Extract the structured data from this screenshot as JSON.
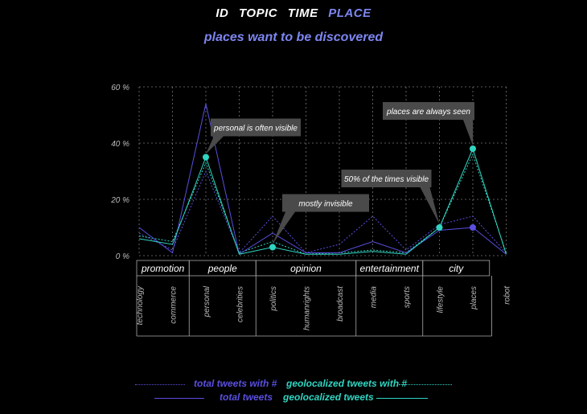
{
  "nav": {
    "items": [
      "ID",
      "TOPIC",
      "TIME",
      "PLACE"
    ],
    "active": "PLACE"
  },
  "subtitle": "places want to be discovered",
  "colors": {
    "purple": "#5a4fe0",
    "teal": "#2fd5c1",
    "grid": "#777777",
    "annotation_bg": "#4a4a4a"
  },
  "chart_data": {
    "type": "line",
    "categories": [
      "technology",
      "commerce",
      "personal",
      "celebrities",
      "politics",
      "humanrights",
      "broadcast",
      "media",
      "sports",
      "lifestyle",
      "places",
      "robot"
    ],
    "groups": [
      {
        "label": "promotion",
        "members": [
          "technology",
          "commerce"
        ]
      },
      {
        "label": "people",
        "members": [
          "personal",
          "celebrities"
        ]
      },
      {
        "label": "opinion",
        "members": [
          "politics",
          "humanrights",
          "broadcast"
        ]
      },
      {
        "label": "entertainment",
        "members": [
          "media",
          "sports"
        ]
      },
      {
        "label": "city",
        "members": [
          "lifestyle",
          "places"
        ]
      }
    ],
    "ylim": [
      0,
      60
    ],
    "yticks": [
      0,
      20,
      40,
      60
    ],
    "ytick_labels": [
      "0 %",
      "20 %",
      "40 %",
      "60 %"
    ],
    "series": [
      {
        "name": "total tweets with #",
        "color": "#5a4fe0",
        "style": "dotted",
        "values": [
          8,
          2,
          30,
          1,
          14,
          1,
          4,
          14,
          2,
          11,
          14,
          1
        ]
      },
      {
        "name": "geolocalized tweets with #",
        "color": "#2fd5c1",
        "style": "dotted",
        "values": [
          7,
          5,
          33,
          1,
          5,
          0.5,
          1,
          2,
          1,
          10,
          36,
          1
        ]
      },
      {
        "name": "total tweets",
        "color": "#5a4fe0",
        "style": "solid",
        "values": [
          10,
          1,
          54,
          0.5,
          8,
          1,
          1,
          5,
          1,
          9,
          10,
          0.5
        ]
      },
      {
        "name": "geolocalized tweets",
        "color": "#2fd5c1",
        "style": "solid",
        "values": [
          6,
          4,
          35,
          0.5,
          3,
          0.5,
          0.5,
          1.5,
          0.5,
          10,
          38,
          0.5
        ]
      }
    ],
    "highlight_points": [
      {
        "category": "personal",
        "value": 35,
        "color": "#2fd5c1"
      },
      {
        "category": "politics",
        "value": 3,
        "color": "#2fd5c1"
      },
      {
        "category": "lifestyle",
        "value": 10,
        "color": "#2fd5c1"
      },
      {
        "category": "places",
        "value": 38,
        "color": "#2fd5c1"
      },
      {
        "category": "places",
        "value": 10,
        "color": "#5a4fe0"
      }
    ],
    "annotations": [
      {
        "text": "personal is often visible",
        "category": "personal",
        "value": 35
      },
      {
        "text": "mostly invisible",
        "category": "politics",
        "value": 3
      },
      {
        "text": "50% of the times visible",
        "category": "lifestyle",
        "value": 10
      },
      {
        "text": "places are always seen",
        "category": "places",
        "value": 38
      }
    ],
    "legend_position": "bottom"
  }
}
